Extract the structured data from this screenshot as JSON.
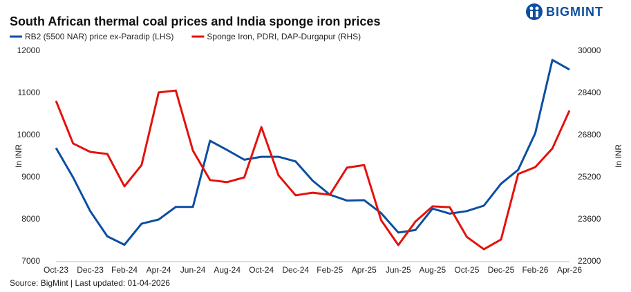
{
  "chart_data": {
    "type": "line",
    "title": "South African thermal coal prices and India sponge iron prices",
    "logo": "BIGMINT",
    "source": "Source: BigMint | Last updated: 01-04-2026",
    "y_label": "In INR",
    "y2_label": "In INR",
    "categories": [
      "Oct-23",
      null,
      "Dec-23",
      null,
      "Feb-24",
      null,
      "Apr-24",
      null,
      "Jun-24",
      null,
      "Aug-24",
      null,
      "Oct-24",
      null,
      "Dec-24",
      null,
      "Feb-25",
      null,
      "Apr-25",
      null,
      "Jun-25",
      null,
      "Aug-25",
      null,
      "Oct-25",
      null,
      "Dec-25",
      null,
      "Feb-26",
      null,
      "Apr-26"
    ],
    "series": [
      {
        "name": "RB2 (5500 NAR) price ex-Paradip (LHS)",
        "color": "#0b4ea2",
        "values": [
          9700,
          9000,
          8200,
          7600,
          7400,
          7900,
          8000,
          8300,
          8300,
          9870,
          9650,
          9420,
          9490,
          9490,
          9380,
          8920,
          8590,
          8450,
          8460,
          8150,
          7690,
          7750,
          8260,
          8140,
          8200,
          8330,
          8850,
          9180,
          10050,
          11790,
          11560
        ]
      },
      {
        "name": "Sponge Iron, PDRI, DAP-Durgapur (RHS)",
        "color": "#e3120b",
        "axis": "y2",
        "values": [
          28110,
          26490,
          26170,
          26090,
          24860,
          25670,
          28430,
          28500,
          26220,
          25100,
          25020,
          25200,
          27110,
          25280,
          24520,
          24620,
          24540,
          25570,
          25670,
          23570,
          22630,
          23520,
          24100,
          24070,
          22940,
          22470,
          22840,
          25330,
          25590,
          26300,
          27740
        ]
      }
    ],
    "ylim": [
      7000,
      12000
    ],
    "yticks": [
      7000,
      8000,
      9000,
      10000,
      11000,
      12000
    ],
    "y2lim": [
      22000,
      30000
    ],
    "y2ticks": [
      22000,
      23600,
      25200,
      26800,
      28400,
      30000
    ],
    "grid": false
  }
}
